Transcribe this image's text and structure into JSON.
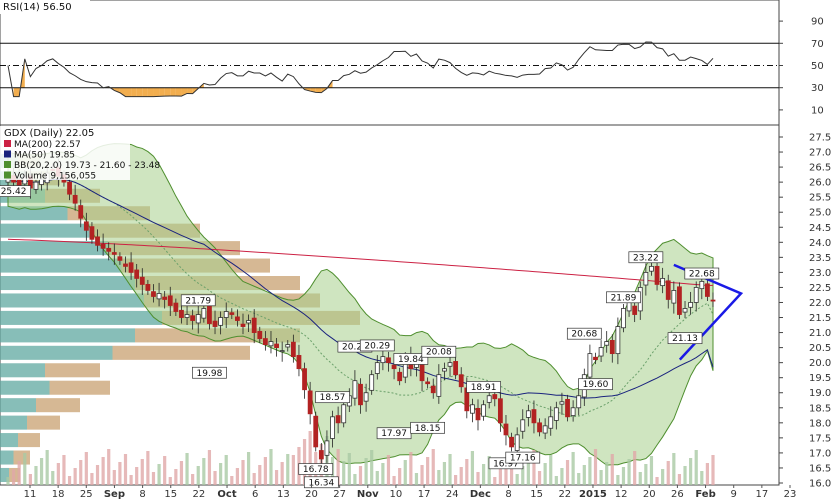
{
  "rsi_panel": {
    "title": "RSI(14) 56.50",
    "levels": [
      30,
      50,
      70
    ],
    "ticks": [
      "90",
      "70",
      "50",
      "30",
      "10"
    ],
    "ylim": [
      0,
      100
    ],
    "line_color": "#333333",
    "overbought_fill": "#f0a030"
  },
  "price_panel": {
    "title": "GDX (Daily) 22.05",
    "legend": [
      {
        "label": "MA(200) 22.57",
        "color": "#cc2244"
      },
      {
        "label": "MA(50) 19.85",
        "color": "#1a237e"
      },
      {
        "label": "BB(20,2.0) 19.73 - 21.60 - 23.48",
        "color": "#4f8f2f"
      },
      {
        "label": "Volume 9,156,055",
        "color": "#4f8f2f"
      }
    ],
    "ylim": [
      16.0,
      27.5
    ],
    "y_ticks": [
      "27.5",
      "27.0",
      "26.5",
      "26.0",
      "25.5",
      "25.0",
      "24.5",
      "24.0",
      "23.5",
      "23.0",
      "22.5",
      "22.0",
      "21.5",
      "21.0",
      "20.5",
      "20.0",
      "19.5",
      "19.0",
      "18.5",
      "18.0",
      "17.5",
      "17.0",
      "16.5",
      "16.0"
    ],
    "up_color": "#5b9a6a",
    "down_color": "#b22222",
    "bb_fill": "#a8d08d",
    "triangle_color": "#1a1ae6"
  },
  "x_axis": {
    "labels": [
      "11",
      "18",
      "25",
      "Sep",
      "8",
      "15",
      "22",
      "Oct",
      "6",
      "13",
      "20",
      "27",
      "Nov",
      "10",
      "17",
      "24",
      "Dec",
      "8",
      "15",
      "22",
      "2015",
      "12",
      "20",
      "26",
      "Feb",
      "9",
      "17",
      "23"
    ]
  },
  "chart_data": {
    "type": "candlestick",
    "title": "GDX (Daily) 22.05",
    "x": [
      "Aug 11",
      "Aug 18",
      "Aug 25",
      "Sep 2",
      "Sep 8",
      "Sep 15",
      "Sep 22",
      "Oct 1",
      "Oct 6",
      "Oct 13",
      "Oct 20",
      "Oct 27",
      "Nov 3",
      "Nov 10",
      "Nov 17",
      "Nov 24",
      "Dec 1",
      "Dec 8",
      "Dec 15",
      "Dec 22",
      "Jan 2",
      "Jan 12",
      "Jan 20",
      "Jan 26",
      "Feb 2",
      "Feb 9",
      "Feb 17",
      "Feb 23"
    ],
    "close_weekly_approx": [
      26.2,
      26.0,
      26.2,
      26.1,
      24.8,
      23.8,
      22.4,
      21.6,
      21.4,
      21.5,
      20.6,
      20.4,
      17.1,
      18.2,
      19.6,
      19.8,
      18.9,
      19.4,
      18.3,
      17.6,
      18.5,
      20.4,
      22.6,
      22.0,
      22.05,
      null,
      null,
      null
    ],
    "close_daily_approx": [
      26.1,
      26.0,
      25.9,
      26.2,
      25.8,
      26.0,
      26.1,
      26.3,
      26.4,
      26.2,
      26.0,
      25.6,
      25.3,
      24.8,
      24.4,
      24.1,
      23.9,
      23.8,
      23.7,
      23.6,
      23.4,
      23.2,
      23.0,
      22.8,
      22.6,
      22.4,
      22.2,
      22.3,
      22.1,
      21.9,
      21.7,
      21.5,
      21.6,
      21.4,
      21.6,
      21.8,
      21.3,
      21.2,
      21.5,
      21.7,
      21.6,
      21.4,
      21.2,
      21.4,
      21.0,
      20.8,
      20.6,
      20.7,
      20.5,
      20.4,
      20.6,
      20.2,
      19.8,
      19.1,
      18.3,
      17.2,
      16.8,
      17.4,
      18.2,
      18.0,
      18.6,
      18.9,
      19.4,
      18.6,
      19.0,
      19.6,
      20.0,
      20.2,
      20.0,
      19.8,
      19.4,
      20.1,
      19.8,
      20.0,
      19.4,
      19.3,
      19.0,
      19.6,
      19.8,
      20.0,
      19.6,
      19.2,
      18.4,
      18.6,
      18.1,
      18.6,
      18.9,
      18.8,
      18.0,
      17.6,
      17.2,
      17.6,
      18.1,
      18.4,
      18.0,
      17.7,
      17.9,
      18.2,
      18.5,
      18.7,
      18.2,
      18.5,
      18.9,
      19.6,
      20.3,
      20.1,
      20.5,
      20.7,
      20.3,
      21.2,
      21.8,
      22.0,
      21.6,
      22.5,
      23.0,
      23.2,
      22.6,
      22.8,
      22.1,
      22.4,
      21.6,
      21.8,
      22.0,
      22.5,
      22.7,
      22.2,
      22.05
    ],
    "annotations": [
      "25.42",
      "21.79",
      "19.98",
      "20.25",
      "20.29",
      "19.84",
      "20.08",
      "18.57",
      "17.97",
      "18.15",
      "18.91",
      "16.78",
      "16.34",
      "16.97",
      "17.16",
      "20.68",
      "19.60",
      "21.89",
      "23.22",
      "22.68",
      "21.13"
    ],
    "overlays": {
      "MA(200)": 22.57,
      "MA(50)": 19.85,
      "BB(20,2.0)": [
        19.73,
        21.6,
        23.48
      ]
    },
    "rsi": 56.5,
    "volume": 9156055,
    "ylim": [
      16.0,
      27.5
    ]
  }
}
